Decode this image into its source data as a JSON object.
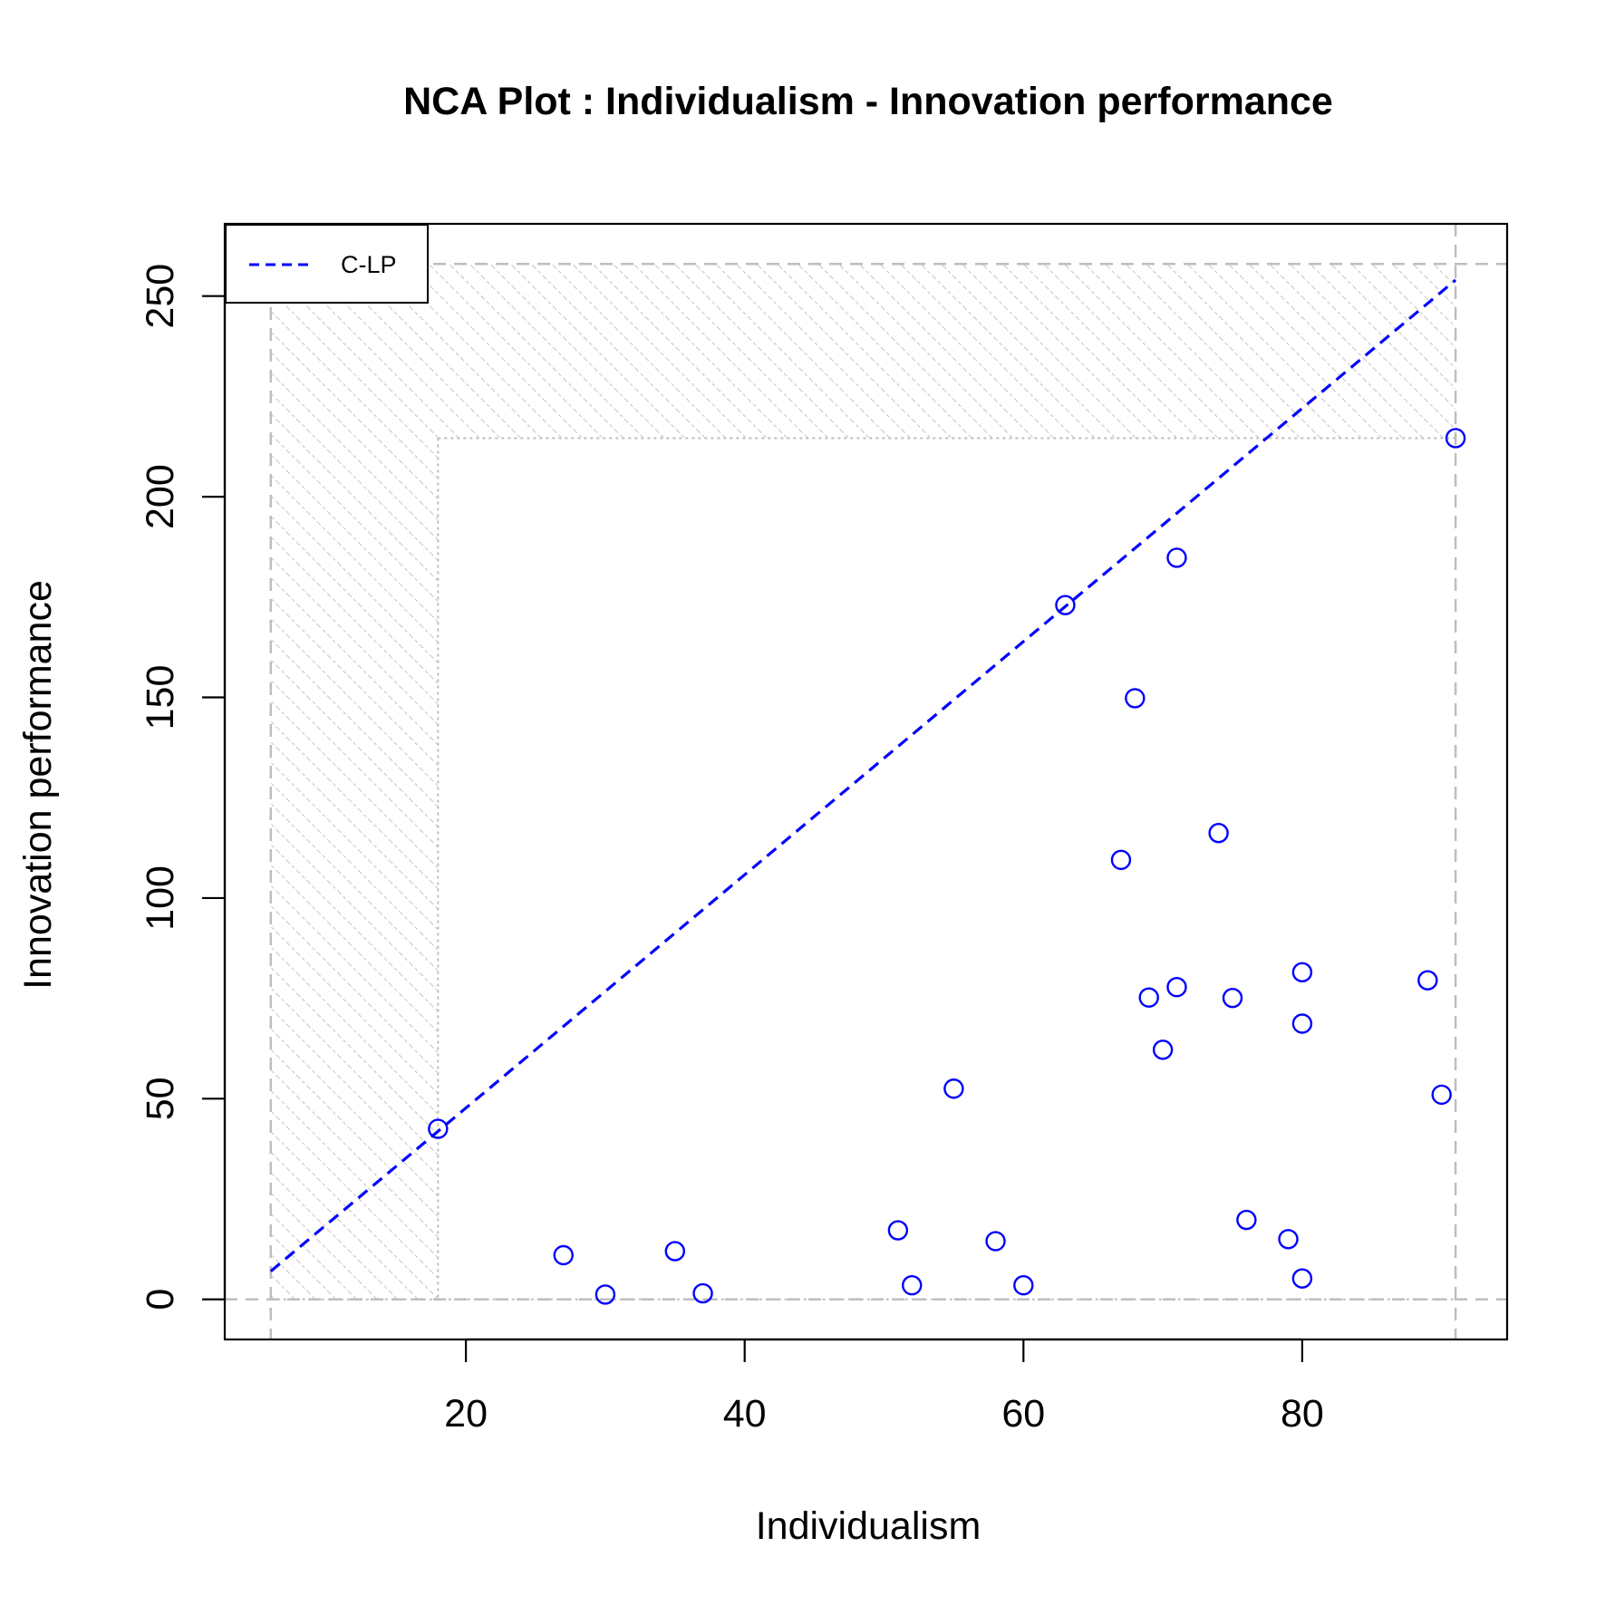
{
  "chart_data": {
    "type": "scatter",
    "title": "NCA Plot : Individualism - Innovation performance",
    "xlabel": "Individualism",
    "ylabel": "Innovation performance",
    "xlim": [
      2.7,
      94.7
    ],
    "ylim": [
      -10,
      268
    ],
    "xticks": [
      20,
      40,
      60,
      80
    ],
    "yticks": [
      0,
      50,
      100,
      150,
      200,
      250
    ],
    "legend": {
      "position": "top-left",
      "entries": [
        {
          "label": "C-LP",
          "color": "#0000ff",
          "style": "dashed"
        }
      ]
    },
    "point_color": "#0000ff",
    "points": [
      {
        "x": 18,
        "y": 42.5
      },
      {
        "x": 27,
        "y": 11
      },
      {
        "x": 30,
        "y": 1.2
      },
      {
        "x": 35,
        "y": 12
      },
      {
        "x": 37,
        "y": 1.5
      },
      {
        "x": 51,
        "y": 17.2
      },
      {
        "x": 52,
        "y": 3.5
      },
      {
        "x": 55,
        "y": 52.5
      },
      {
        "x": 58,
        "y": 14.5
      },
      {
        "x": 60,
        "y": 3.5
      },
      {
        "x": 63,
        "y": 173
      },
      {
        "x": 67,
        "y": 109.5
      },
      {
        "x": 68,
        "y": 149.8
      },
      {
        "x": 69,
        "y": 75.2
      },
      {
        "x": 70,
        "y": 62.2
      },
      {
        "x": 71,
        "y": 184.8
      },
      {
        "x": 71,
        "y": 77.8
      },
      {
        "x": 74,
        "y": 116.2
      },
      {
        "x": 75,
        "y": 75.1
      },
      {
        "x": 76,
        "y": 19.8
      },
      {
        "x": 79,
        "y": 15
      },
      {
        "x": 80,
        "y": 81.5
      },
      {
        "x": 80,
        "y": 68.7
      },
      {
        "x": 80,
        "y": 5.2
      },
      {
        "x": 89,
        "y": 79.5
      },
      {
        "x": 90,
        "y": 51
      },
      {
        "x": 91,
        "y": 214.6
      }
    ],
    "ceiling_line": {
      "name": "C-LP",
      "x": [
        6,
        91
      ],
      "y": [
        7,
        254
      ]
    },
    "scope": {
      "xmin": 6,
      "xmax": 91,
      "ymin": 0,
      "ymax": 258
    },
    "empty_zone_corners": {
      "x": 18,
      "y": 214.6
    },
    "colors": {
      "ceiling": "#0000ff",
      "scope": "#bebebe",
      "hatch": "#bebebe"
    }
  }
}
